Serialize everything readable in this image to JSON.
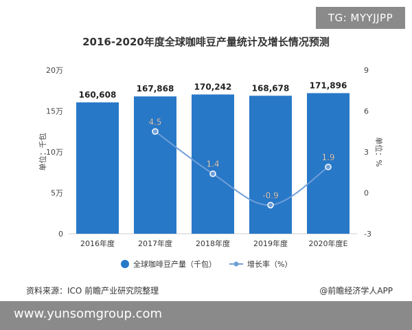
{
  "tag": "TG: MYYJJPP",
  "source": "资料来源：ICO 前瞻产业研究院整理",
  "credit": "@前瞻经济学人APP",
  "footer": "www.yunsomgroup.com",
  "chart_data": {
    "type": "bar",
    "title": "2016-2020年度全球咖啡豆产量统计及增长情况预测",
    "categories": [
      "2016年度",
      "2017年度",
      "2018年度",
      "2019年度",
      "2020年度E"
    ],
    "series": [
      {
        "name": "全球咖啡豆产量（千包）",
        "type": "bar",
        "axis": "left",
        "values": [
          160608,
          167868,
          170242,
          168678,
          171896
        ],
        "labels": [
          "160,608",
          "167,868",
          "170,242",
          "168,678",
          "171,896"
        ],
        "color": "#2878c8"
      },
      {
        "name": "增长率（%）",
        "type": "line",
        "axis": "right",
        "values": [
          null,
          4.5,
          1.4,
          -0.9,
          1.9
        ],
        "labels": [
          "",
          "4.5",
          "1.4",
          "-0.9",
          "1.9"
        ],
        "color": "#6f9fd8"
      }
    ],
    "ylabel": "单位：千包",
    "y2label": "单位：%",
    "ylim": [
      0,
      200000
    ],
    "y2lim": [
      -3,
      9
    ],
    "yticks": [
      "0",
      "5万",
      "10万",
      "15万",
      "20万"
    ],
    "y2ticks": [
      "-3",
      "0",
      "3",
      "6",
      "9"
    ],
    "legend_position": "bottom"
  }
}
